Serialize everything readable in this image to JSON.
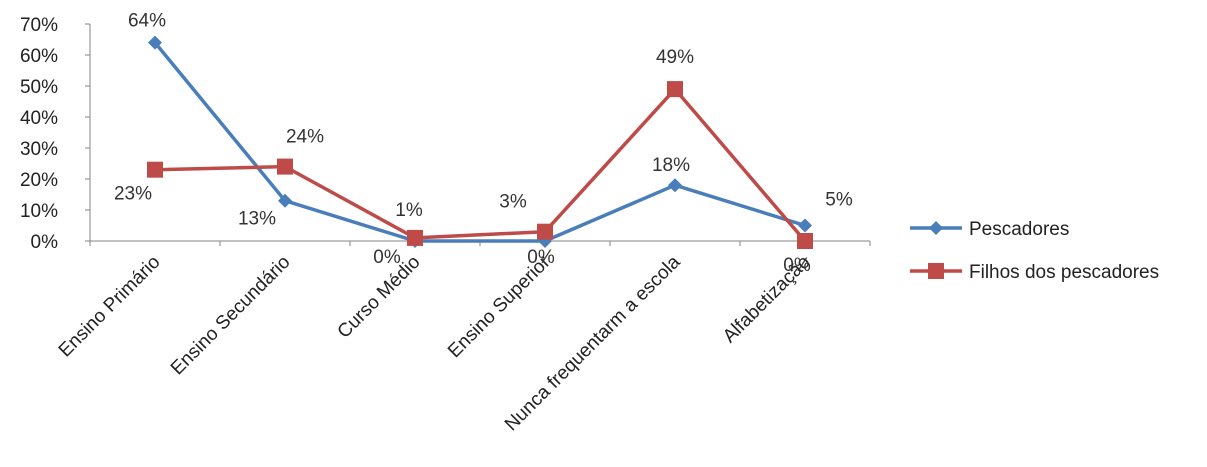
{
  "chart_data": {
    "type": "line",
    "categories": [
      "Ensino Primário",
      "Ensino Secundário",
      "Curso Médio",
      "Ensino Superior",
      "Nunca frequentarm a escola",
      "Alfabetização"
    ],
    "yticks": [
      "0%",
      "10%",
      "20%",
      "30%",
      "40%",
      "50%",
      "60%",
      "70%"
    ],
    "ylim": [
      0,
      70
    ],
    "grid": false,
    "legend_position": "right",
    "series": [
      {
        "name": "Pescadores",
        "values": [
          64,
          13,
          0,
          0,
          18,
          5
        ],
        "labels": [
          "64%",
          "13%",
          "0%",
          "0%",
          "18%",
          "5%"
        ],
        "color": "#4A7EBB",
        "marker": "diamond"
      },
      {
        "name": "Filhos dos pescadores",
        "values": [
          23,
          24,
          1,
          3,
          49,
          0
        ],
        "labels": [
          "23%",
          "24%",
          "1%",
          "3%",
          "49%",
          "0%"
        ],
        "color": "#BE4B48",
        "marker": "square"
      }
    ]
  }
}
